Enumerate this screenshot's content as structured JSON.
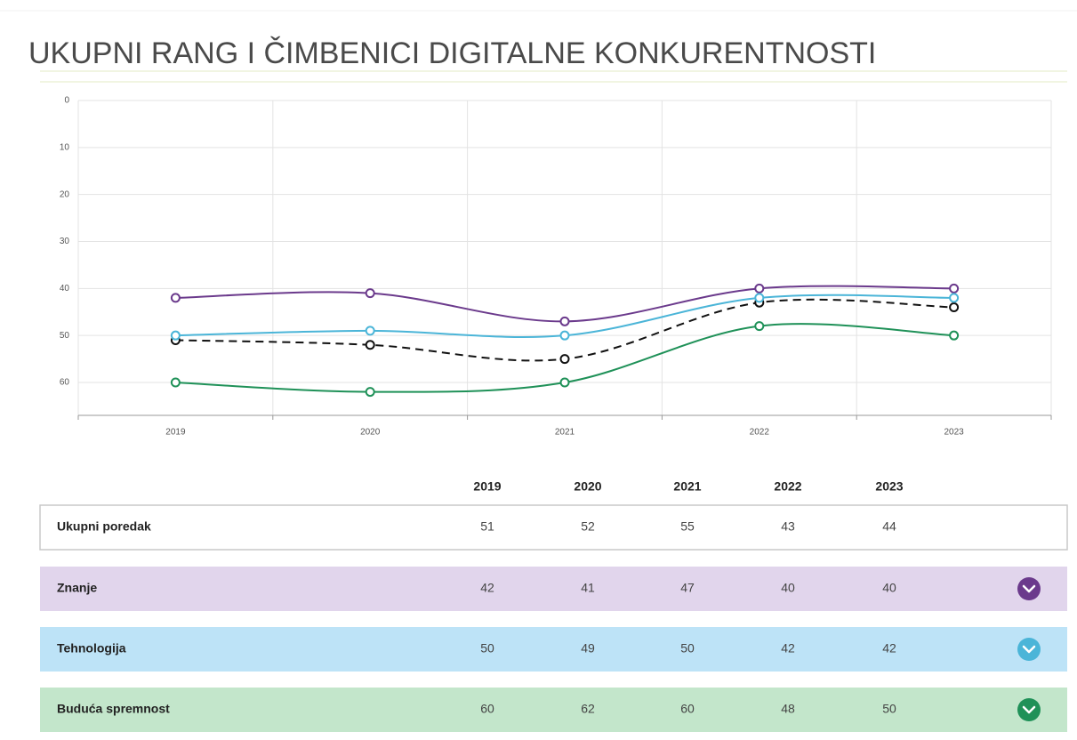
{
  "chart_data": {
    "type": "line",
    "title": "UKUPNI RANG I ČIMBENICI DIGITALNE KONKURENTNOSTI",
    "categories": [
      "2019",
      "2020",
      "2021",
      "2022",
      "2023"
    ],
    "ylim": [
      0,
      67
    ],
    "y_reversed": true,
    "yticks": [
      0,
      10,
      20,
      30,
      40,
      50,
      60
    ],
    "grid": true,
    "series": [
      {
        "name": "Ukupni poredak",
        "color": "#111111",
        "dashed": true,
        "values": [
          51,
          52,
          55,
          43,
          44
        ]
      },
      {
        "name": "Znanje",
        "color": "#6b3a8c",
        "values": [
          42,
          41,
          47,
          40,
          40
        ]
      },
      {
        "name": "Tehnologija",
        "color": "#4bb5d8",
        "values": [
          50,
          49,
          50,
          42,
          42
        ]
      },
      {
        "name": "Buduća spremnost",
        "color": "#1f9158",
        "values": [
          60,
          62,
          60,
          48,
          50
        ]
      }
    ]
  }
}
